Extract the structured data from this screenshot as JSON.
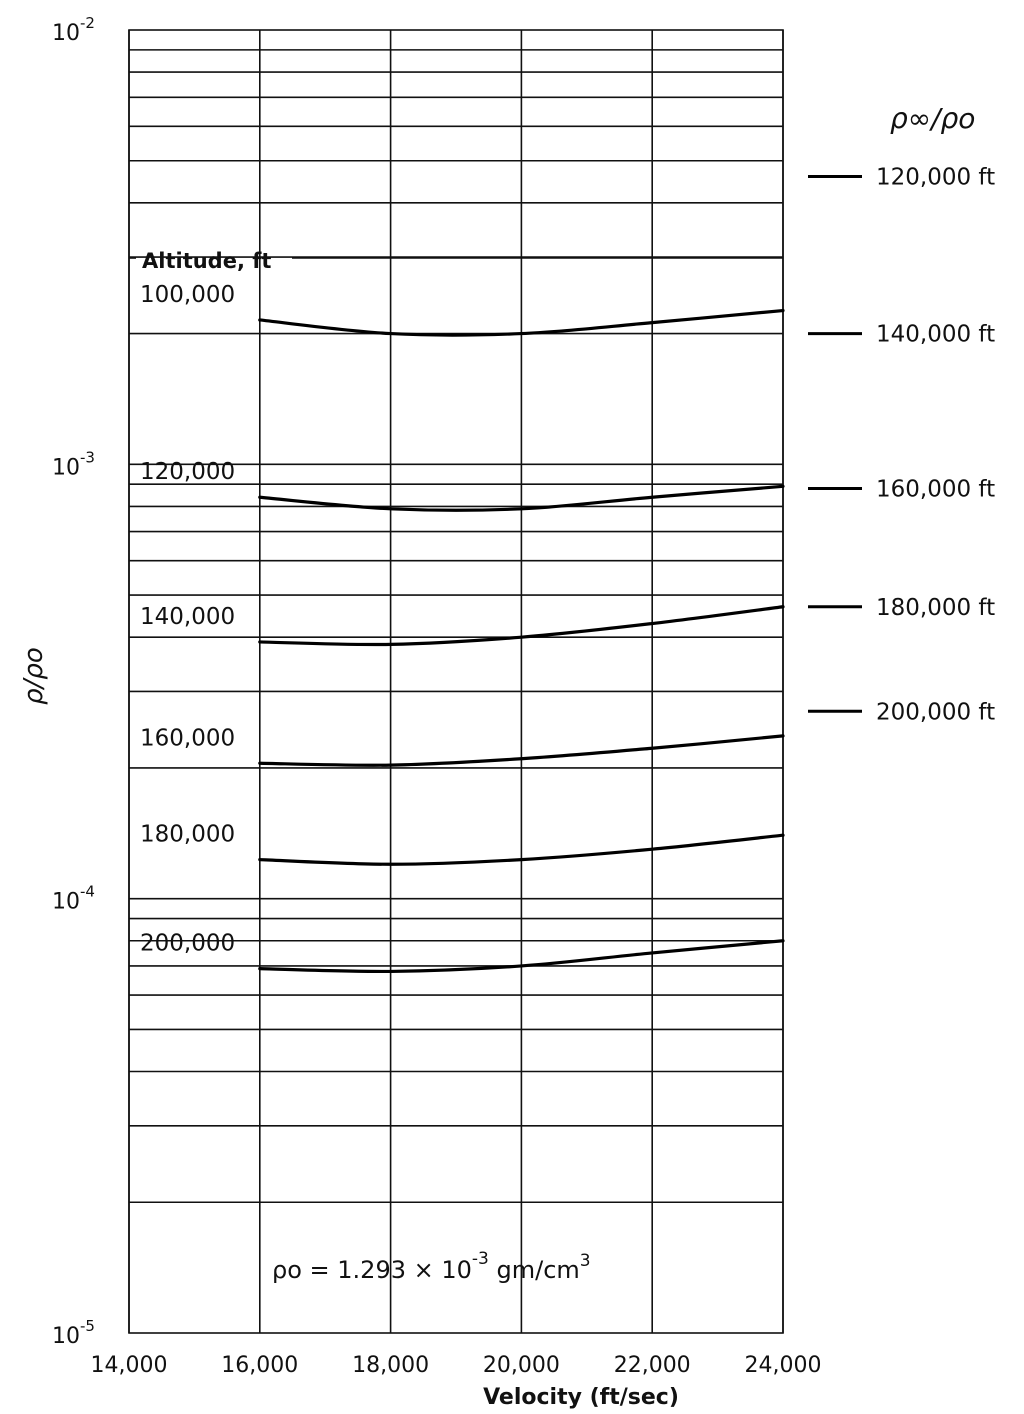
{
  "chart_data": {
    "type": "line",
    "title": "",
    "xlabel": "Velocity (ft/sec)",
    "ylabel": "ρ/ρo",
    "y_scale": "log",
    "xlim": [
      14000,
      24000
    ],
    "ylim": [
      1e-05,
      0.01
    ],
    "grid": true,
    "x_ticks": [
      14000,
      16000,
      18000,
      20000,
      22000,
      24000
    ],
    "x_tick_labels": [
      "14,000",
      "16,000",
      "18,000",
      "20,000",
      "22,000",
      "24,000"
    ],
    "y_tick_labels": [
      {
        "base": "10",
        "exp": "-2",
        "value": 0.01
      },
      {
        "base": "10",
        "exp": "-3",
        "value": 0.001
      },
      {
        "base": "10",
        "exp": "-4",
        "value": 0.0001
      },
      {
        "base": "10",
        "exp": "-5",
        "value": 1e-05
      }
    ],
    "legend_title": "Altitude, ft",
    "x": [
      16000,
      18000,
      20000,
      22000,
      24000
    ],
    "series": [
      {
        "name": "100,000",
        "values": [
          0.00215,
          0.002,
          0.002,
          0.00212,
          0.00226
        ]
      },
      {
        "name": "120,000",
        "values": [
          0.00084,
          0.00079,
          0.00079,
          0.00084,
          0.00089
        ]
      },
      {
        "name": "140,000",
        "values": [
          0.00039,
          0.000385,
          0.0004,
          0.00043,
          0.00047
        ]
      },
      {
        "name": "160,000",
        "values": [
          0.000205,
          0.000203,
          0.00021,
          0.000222,
          0.000237
        ]
      },
      {
        "name": "180,000",
        "values": [
          0.000123,
          0.00012,
          0.000123,
          0.00013,
          0.00014
        ]
      },
      {
        "name": "200,000",
        "values": [
          6.9e-05,
          6.8e-05,
          7e-05,
          7.5e-05,
          8e-05
        ]
      }
    ],
    "reference_title": "ρ∞/ρo",
    "reference_levels": [
      {
        "label": "120,000 ft",
        "value": 0.0046
      },
      {
        "label": "140,000 ft",
        "value": 0.002
      },
      {
        "label": "160,000 ft",
        "value": 0.00088
      },
      {
        "label": "180,000 ft",
        "value": 0.00047
      },
      {
        "label": "200,000 ft",
        "value": 0.00027
      }
    ],
    "annotation": {
      "base": "ρo = 1.293 × 10",
      "exp": "-3",
      "unit": " gm/cm",
      "unit_exp": "3"
    }
  }
}
